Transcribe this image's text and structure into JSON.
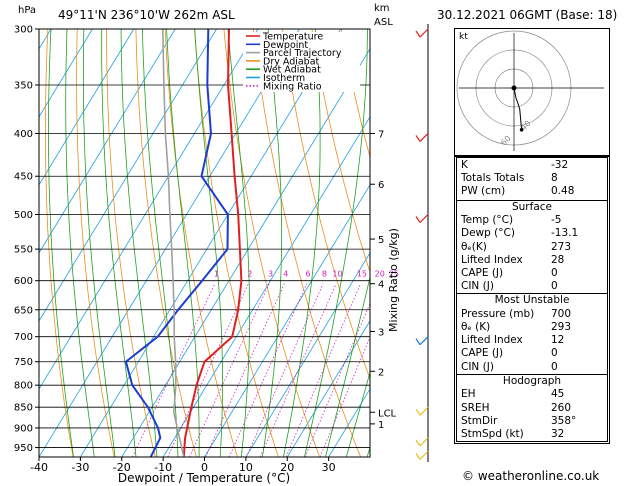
{
  "header": {
    "hpa_label": "hPa",
    "location": "49°11'N  236°10'W  262m  ASL",
    "km_label": "km",
    "asl_label": "ASL",
    "date": "30.12.2021  06GMT  (Base: 18)"
  },
  "chart_data": {
    "type": "line",
    "subtype": "skew-T log-P diagram",
    "xlabel": "Dewpoint / Temperature (°C)",
    "ylabel": "hPa",
    "right_axis_label": "Mixing Ratio (g/kg)",
    "x_ticks": [
      -40,
      -30,
      -20,
      -10,
      0,
      10,
      20,
      30
    ],
    "y_ticks": [
      300,
      350,
      400,
      450,
      500,
      550,
      600,
      650,
      700,
      750,
      800,
      850,
      900,
      950
    ],
    "ylim": [
      300,
      975
    ],
    "xlim": [
      -40,
      40
    ],
    "y_scale": "log",
    "skew_deg_per_px": 0.147,
    "km_ticks": [
      {
        "p": 400,
        "label": "7"
      },
      {
        "p": 460,
        "label": "6"
      },
      {
        "p": 535,
        "label": "5"
      },
      {
        "p": 605,
        "label": "4"
      },
      {
        "p": 690,
        "label": "3"
      },
      {
        "p": 770,
        "label": "2"
      },
      {
        "p": 890,
        "label": "1"
      },
      {
        "p": 862,
        "label": "LCL"
      }
    ],
    "mixing_ratio_labels": [
      "1",
      "2",
      "3",
      "4",
      "6",
      "8",
      "10",
      "15",
      "20",
      "25"
    ],
    "mixing_ratio_values": [
      1,
      2,
      3,
      4,
      6,
      8,
      10,
      15,
      20,
      25
    ],
    "legend": [
      {
        "name": "Temperature",
        "color": "#e02020",
        "dash": false
      },
      {
        "name": "Dewpoint",
        "color": "#1c3cd0",
        "dash": false
      },
      {
        "name": "Parcel Trajectory",
        "color": "#a0a0a0",
        "dash": false
      },
      {
        "name": "Dry Adiabat",
        "color": "#e89020",
        "dash": false
      },
      {
        "name": "Wet Adiabat",
        "color": "#20a020",
        "dash": false
      },
      {
        "name": "Isotherm",
        "color": "#20a0e0",
        "dash": false
      },
      {
        "name": "Mixing Ratio",
        "color": "#d020c0",
        "dash": true
      }
    ],
    "series": [
      {
        "name": "Temperature",
        "color": "#e02020",
        "points": [
          [
            975,
            -5
          ],
          [
            925,
            -7.5
          ],
          [
            850,
            -10.5
          ],
          [
            800,
            -12.5
          ],
          [
            750,
            -14
          ],
          [
            700,
            -11
          ],
          [
            650,
            -13.5
          ],
          [
            600,
            -17
          ],
          [
            550,
            -22
          ],
          [
            500,
            -27.5
          ],
          [
            450,
            -34
          ],
          [
            400,
            -41
          ],
          [
            350,
            -49
          ],
          [
            300,
            -57
          ]
        ]
      },
      {
        "name": "Dewpoint",
        "color": "#1c3cd0",
        "points": [
          [
            975,
            -13
          ],
          [
            925,
            -13.5
          ],
          [
            900,
            -15.5
          ],
          [
            850,
            -21
          ],
          [
            800,
            -28
          ],
          [
            750,
            -33
          ],
          [
            700,
            -29
          ],
          [
            650,
            -28
          ],
          [
            600,
            -26.5
          ],
          [
            550,
            -25
          ],
          [
            500,
            -30
          ],
          [
            450,
            -42
          ],
          [
            400,
            -46
          ],
          [
            350,
            -54
          ],
          [
            300,
            -62
          ]
        ]
      },
      {
        "name": "Parcel Trajectory",
        "color": "#a0a0a0",
        "points": [
          [
            975,
            -5
          ],
          [
            862,
            -14
          ],
          [
            800,
            -17.5
          ],
          [
            750,
            -21
          ],
          [
            700,
            -25
          ],
          [
            650,
            -29
          ],
          [
            600,
            -33.5
          ],
          [
            550,
            -38.5
          ],
          [
            500,
            -44
          ],
          [
            450,
            -50
          ],
          [
            400,
            -57
          ],
          [
            350,
            -64.5
          ],
          [
            300,
            -73
          ]
        ]
      }
    ]
  },
  "hodograph": {
    "label": "kt",
    "ring_labels": [
      "40",
      "60",
      "120"
    ],
    "points": [
      [
        0,
        0
      ],
      [
        2,
        -10
      ],
      [
        6,
        -22
      ],
      [
        8,
        -44
      ]
    ]
  },
  "indices": [
    {
      "label": "K",
      "value": "-32"
    },
    {
      "label": "Totals Totals",
      "value": "8"
    },
    {
      "label": "PW (cm)",
      "value": "0.48"
    }
  ],
  "surface": {
    "title": "Surface",
    "rows": [
      {
        "label": "Temp (°C)",
        "value": "-5"
      },
      {
        "label": "Dewp (°C)",
        "value": "-13.1"
      },
      {
        "label": "θₑ(K)",
        "value": "273"
      },
      {
        "label": "Lifted Index",
        "value": "28"
      },
      {
        "label": "CAPE (J)",
        "value": "0"
      },
      {
        "label": "CIN (J)",
        "value": "0"
      }
    ]
  },
  "most_unstable": {
    "title": "Most Unstable",
    "rows": [
      {
        "label": "Pressure (mb)",
        "value": "700"
      },
      {
        "label": "θₑ (K)",
        "value": "293"
      },
      {
        "label": "Lifted Index",
        "value": "12"
      },
      {
        "label": "CAPE (J)",
        "value": "0"
      },
      {
        "label": "CIN (J)",
        "value": "0"
      }
    ]
  },
  "hodo_table": {
    "title": "Hodograph",
    "rows": [
      {
        "label": "EH",
        "value": "45"
      },
      {
        "label": "SREH",
        "value": "260"
      },
      {
        "label": "StmDir",
        "value": "358°"
      },
      {
        "label": "StmSpd (kt)",
        "value": "32"
      }
    ]
  },
  "footer": {
    "copyright": "© weatheronline.co.uk"
  },
  "colors": {
    "temperature": "#e02020",
    "dewpoint": "#1c3cd0",
    "parcel": "#a0a0a0",
    "dry_adiabat": "#e89020",
    "wet_adiabat": "#20a020",
    "isotherm": "#20a0e0",
    "mixing_ratio": "#d020c0",
    "wind_barb": "#e8c020"
  }
}
